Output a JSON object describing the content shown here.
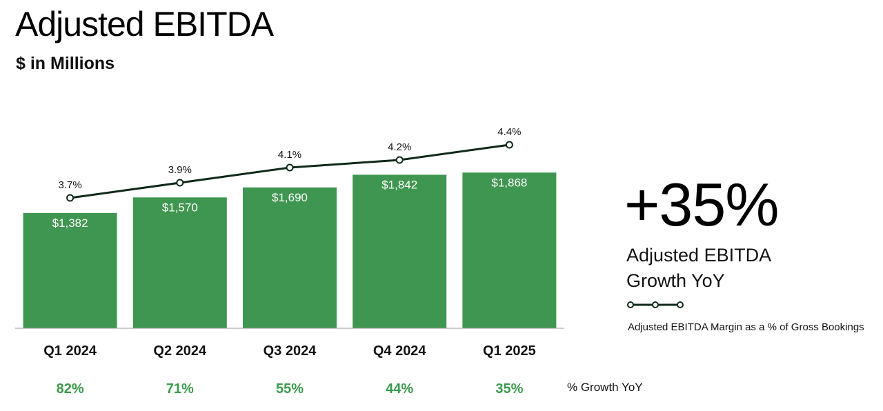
{
  "header": {
    "title": "Adjusted EBITDA",
    "subtitle": "$ in Millions"
  },
  "colors": {
    "bar": "#3f9650",
    "line": "#0d2a18",
    "growth_text": "#3a9a4a",
    "axis": "#9a9a9a"
  },
  "chart_data": {
    "type": "bar",
    "categories": [
      "Q1 2024",
      "Q2 2024",
      "Q3 2024",
      "Q4 2024",
      "Q1 2025"
    ],
    "series": [
      {
        "values": [
          1382,
          1570,
          1690,
          1842,
          1868
        ],
        "value_labels": [
          "$1,382",
          "$1,570",
          "$1,690",
          "$1,842",
          "$1,868"
        ]
      },
      {
        "name": "Adjusted EBITDA Margin as a % of Gross Bookings",
        "type": "line",
        "values": [
          3.7,
          3.9,
          4.1,
          4.2,
          4.4
        ],
        "value_labels": [
          "3.7%",
          "3.9%",
          "4.1%",
          "4.2%",
          "4.4%"
        ]
      }
    ],
    "growth_yoy": [
      "82%",
      "71%",
      "55%",
      "44%",
      "35%"
    ],
    "title": "Adjusted EBITDA",
    "subtitle": "$ in Millions",
    "ylim": [
      0,
      2000
    ],
    "grid": false
  },
  "highlight": {
    "value": "+35%",
    "label_line1": "Adjusted EBITDA",
    "label_line2": "Growth YoY"
  },
  "legend": {
    "margin_label": "Adjusted EBITDA Margin as a % of Gross Bookings"
  },
  "growth_row_label": "% Growth YoY"
}
